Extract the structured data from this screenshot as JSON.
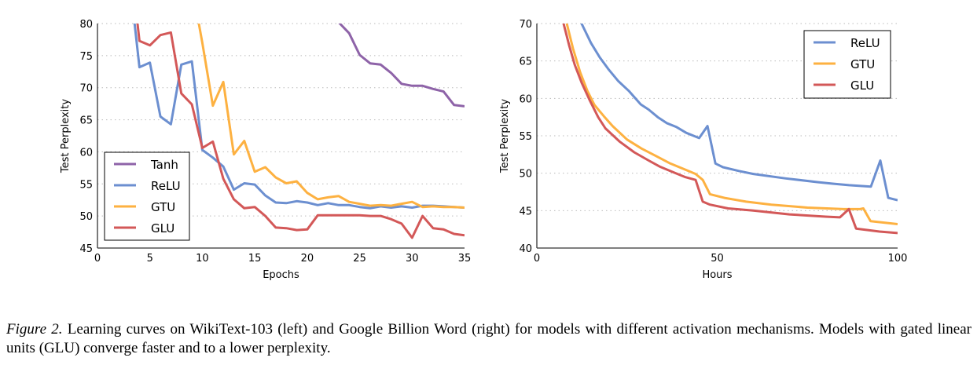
{
  "colors": {
    "Tanh": "#8e63a8",
    "ReLU": "#6c8fd0",
    "GTU": "#fdb141",
    "GLU": "#d35858"
  },
  "chart_data": [
    {
      "type": "line",
      "xlabel": "Epochs",
      "ylabel": "Test Perplexity",
      "xlim": [
        0,
        35
      ],
      "ylim": [
        45,
        80
      ],
      "xticks": [
        0,
        5,
        10,
        15,
        20,
        25,
        30,
        35
      ],
      "yticks": [
        45,
        50,
        55,
        60,
        65,
        70,
        75,
        80
      ],
      "grid": "horizontal dotted",
      "legend": "bottom-left",
      "series": [
        {
          "name": "Tanh",
          "x": [
            22,
            23,
            24,
            25,
            26,
            27,
            28,
            29,
            30,
            31,
            32,
            33,
            34,
            35
          ],
          "y": [
            83,
            80.2,
            78.5,
            75.1,
            73.8,
            73.6,
            72.3,
            70.6,
            70.3,
            70.3,
            69.8,
            69.4,
            67.3,
            67.1
          ]
        },
        {
          "name": "ReLU",
          "x": [
            3,
            4,
            5,
            6,
            7,
            8,
            9,
            10,
            11,
            12,
            13,
            14,
            15,
            16,
            17,
            18,
            19,
            20,
            21,
            22,
            23,
            24,
            25,
            26,
            27,
            28,
            29,
            30,
            31,
            32,
            33,
            34,
            35
          ],
          "y": [
            88,
            73.2,
            73.9,
            65.5,
            64.3,
            73.6,
            74.1,
            60.3,
            59.1,
            57.7,
            54.1,
            55.1,
            54.9,
            53.2,
            52.1,
            52.0,
            52.3,
            52.1,
            51.7,
            52.0,
            51.7,
            51.7,
            51.4,
            51.2,
            51.5,
            51.3,
            51.5,
            51.3,
            51.6,
            51.6,
            51.5,
            51.4,
            51.3
          ]
        },
        {
          "name": "GTU",
          "x": [
            9,
            10,
            11,
            12,
            13,
            14,
            15,
            16,
            17,
            18,
            19,
            20,
            21,
            22,
            23,
            24,
            25,
            26,
            27,
            28,
            29,
            30,
            31,
            32,
            33,
            34,
            35
          ],
          "y": [
            86,
            77,
            67.2,
            70.9,
            59.6,
            61.7,
            56.9,
            57.6,
            56.0,
            55.1,
            55.4,
            53.6,
            52.6,
            52.9,
            53.1,
            52.2,
            51.9,
            51.6,
            51.7,
            51.6,
            51.9,
            52.2,
            51.4,
            51.5,
            51.4,
            51.4,
            51.3
          ]
        },
        {
          "name": "GLU",
          "x": [
            3,
            4,
            5,
            6,
            7,
            8,
            9,
            10,
            11,
            12,
            13,
            14,
            15,
            16,
            17,
            18,
            19,
            20,
            21,
            22,
            23,
            24,
            25,
            26,
            27,
            28,
            29,
            30,
            31,
            32,
            33,
            34,
            35
          ],
          "y": [
            92,
            77.3,
            76.6,
            78.2,
            78.6,
            69.1,
            67.4,
            60.6,
            61.6,
            55.8,
            52.6,
            51.2,
            51.4,
            50.0,
            48.2,
            48.1,
            47.8,
            47.9,
            50.1,
            50.1,
            50.1,
            50.1,
            50.1,
            50.0,
            50.0,
            49.5,
            48.8,
            46.6,
            50.0,
            48.1,
            47.9,
            47.2,
            47.0
          ]
        }
      ]
    },
    {
      "type": "line",
      "xlabel": "Hours",
      "ylabel": "Test Perplexity",
      "xlim": [
        0,
        100
      ],
      "ylim": [
        40,
        70
      ],
      "xticks": [
        0,
        50,
        100
      ],
      "yticks": [
        40,
        45,
        50,
        55,
        60,
        65,
        70
      ],
      "grid": "horizontal dotted",
      "legend": "top-right",
      "series": [
        {
          "name": "ReLU",
          "x": [
            10,
            12.4,
            15,
            17.4,
            20,
            22.6,
            25.5,
            28.8,
            31,
            33.5,
            36,
            38.6,
            41.4,
            45,
            47.3,
            49.5,
            51.6,
            56,
            60,
            69,
            78,
            82,
            86.5,
            92.6,
            95.2,
            97.4,
            100
          ],
          "y": [
            73,
            70,
            67.4,
            65.5,
            63.8,
            62.3,
            61.0,
            59.2,
            58.5,
            57.5,
            56.7,
            56.2,
            55.4,
            54.7,
            56.3,
            51.3,
            50.8,
            50.3,
            49.9,
            49.3,
            48.8,
            48.6,
            48.4,
            48.2,
            51.7,
            46.7,
            46.4
          ]
        },
        {
          "name": "GTU",
          "x": [
            7,
            8.3,
            10,
            12,
            14,
            16,
            18.6,
            21,
            25,
            29,
            33,
            37,
            42,
            44,
            46,
            48,
            52,
            58,
            65,
            75,
            85,
            89.6,
            90.5,
            92.5,
            100
          ],
          "y": [
            73,
            70,
            66.7,
            63.5,
            61.0,
            59.1,
            57.6,
            56.3,
            54.5,
            53.3,
            52.3,
            51.3,
            50.3,
            49.9,
            49.1,
            47.2,
            46.7,
            46.2,
            45.8,
            45.4,
            45.2,
            45.2,
            45.3,
            43.6,
            43.2
          ]
        },
        {
          "name": "GLU",
          "x": [
            6.5,
            7.4,
            9,
            10.5,
            12.5,
            14.7,
            17,
            19,
            23,
            27,
            31,
            34,
            38,
            41,
            44,
            46,
            48,
            53,
            60,
            70,
            80,
            84,
            86.5,
            88.5,
            95,
            100
          ],
          "y": [
            72,
            70,
            67,
            64.5,
            62,
            59.7,
            57.5,
            56,
            54.2,
            52.8,
            51.7,
            50.9,
            50.1,
            49.5,
            49.1,
            46.2,
            45.8,
            45.3,
            45.0,
            44.5,
            44.2,
            44.1,
            45.2,
            42.6,
            42.2,
            42.0
          ]
        }
      ]
    }
  ],
  "caption": {
    "label": "Figure 2.",
    "text": " Learning curves on WikiText-103 (left) and Google Billion Word (right) for models with different activation mechanisms. Models with gated linear units (GLU) converge faster and to a lower perplexity."
  }
}
